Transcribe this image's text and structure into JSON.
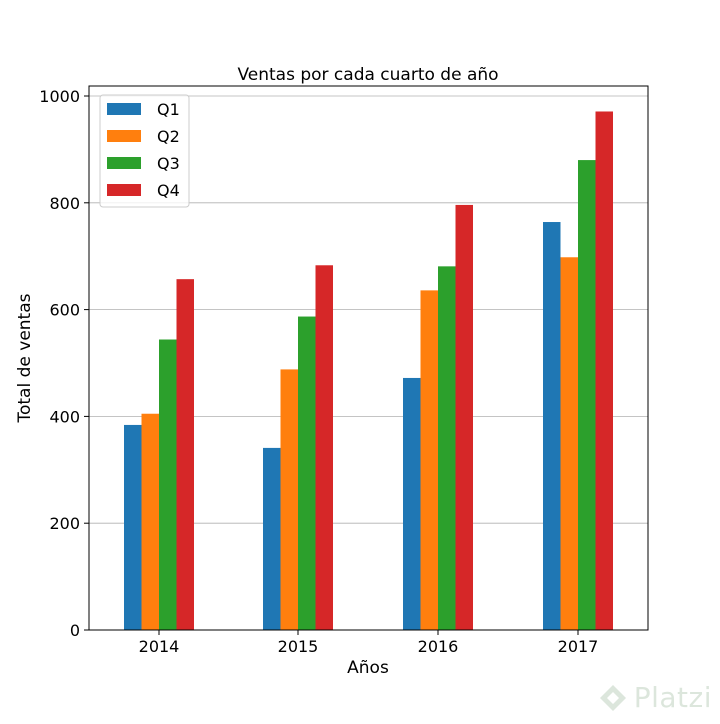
{
  "chart_data": {
    "type": "bar",
    "title": "Ventas por cada cuarto de año",
    "xlabel": "Años",
    "ylabel": "Total de ventas",
    "categories": [
      "2014",
      "2015",
      "2016",
      "2017"
    ],
    "ylim": [
      0,
      1000
    ],
    "yticks": [
      0,
      200,
      400,
      600,
      800,
      1000
    ],
    "grid": "y",
    "legend_position": "top-left",
    "series": [
      {
        "name": "Q1",
        "color": "#1f77b4",
        "values": [
          384,
          341,
          472,
          764
        ]
      },
      {
        "name": "Q2",
        "color": "#ff7f0e",
        "values": [
          405,
          488,
          636,
          698
        ]
      },
      {
        "name": "Q3",
        "color": "#2ca02c",
        "values": [
          544,
          587,
          681,
          880
        ]
      },
      {
        "name": "Q4",
        "color": "#d62728",
        "values": [
          657,
          683,
          796,
          971
        ]
      }
    ]
  },
  "watermark": {
    "text": "Platzi",
    "icon": "platzi-logo-icon"
  }
}
